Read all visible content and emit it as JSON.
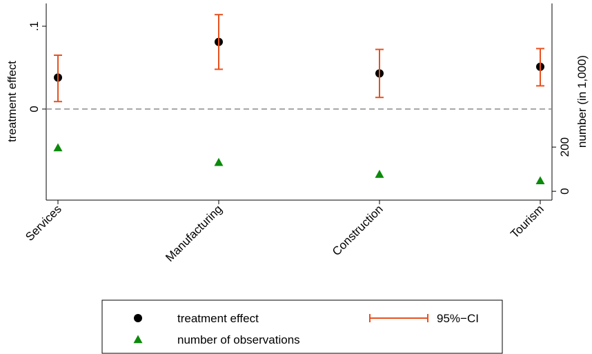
{
  "chart_data": {
    "type": "dot-errorbar",
    "y_label": "treatment effect",
    "y2_label": "number (in 1,000)",
    "categories": [
      "Services",
      "Manufacturing",
      "Construction",
      "Tourism"
    ],
    "series": [
      {
        "name": "treatment effect",
        "color": "#000000",
        "values": [
          0.038,
          0.081,
          0.043,
          0.051
        ]
      },
      {
        "name": "95%−CI",
        "color": "#e8501e",
        "lower": [
          0.009,
          0.048,
          0.014,
          0.028
        ],
        "upper": [
          0.065,
          0.114,
          0.072,
          0.073
        ]
      },
      {
        "name": "number of observations",
        "color": "#0b8a0b",
        "axis": "y2",
        "values": [
          197,
          131,
          77,
          48
        ]
      }
    ],
    "ylim": [
      -0.11,
      0.1275
    ],
    "yticks": [
      0,
      {
        "value": 0.1,
        "label": ".1"
      }
    ],
    "y2lim": [
      -40,
      850
    ],
    "y2ticks": [
      0,
      200
    ],
    "hline": 0
  }
}
